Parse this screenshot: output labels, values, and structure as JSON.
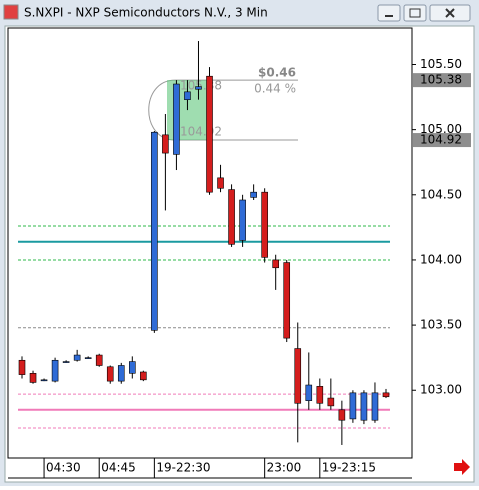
{
  "window": {
    "title": "S.NXPI - NXP Semiconductors N.V., 3 Min"
  },
  "chart_data": {
    "type": "candlestick",
    "up_color": "#2f6bd6",
    "down_color": "#d41d1d",
    "categories": [
      null,
      null,
      "04:30",
      null,
      null,
      null,
      null,
      "04:45",
      null,
      null,
      null,
      null,
      "19-22:30",
      null,
      null,
      null,
      null,
      null,
      null,
      null,
      null,
      null,
      "23:00",
      null,
      null,
      null,
      null,
      "19-23:15",
      null,
      null,
      null,
      null,
      null,
      null
    ],
    "open": [
      103.23,
      103.13,
      103.08,
      103.07,
      103.22,
      103.23,
      103.25,
      103.27,
      103.18,
      103.07,
      103.13,
      103.14,
      103.46,
      104.96,
      104.81,
      105.23,
      105.31,
      105.41,
      104.63,
      104.54,
      104.15,
      104.48,
      104.52,
      104.0,
      103.98,
      103.32,
      102.92,
      103.03,
      102.94,
      102.85,
      102.78,
      102.77,
      102.77,
      102.98
    ],
    "high": [
      103.26,
      103.15,
      103.09,
      103.25,
      103.23,
      103.31,
      103.26,
      103.28,
      103.19,
      103.21,
      103.26,
      103.15,
      104.99,
      105.12,
      105.38,
      105.38,
      105.68,
      105.48,
      104.73,
      104.58,
      104.5,
      104.58,
      104.55,
      104.04,
      104.0,
      103.52,
      103.29,
      103.09,
      103.09,
      102.92,
      103.0,
      103.0,
      103.06,
      103.01
    ],
    "low": [
      103.09,
      103.05,
      103.07,
      103.06,
      103.21,
      103.22,
      103.24,
      103.18,
      103.05,
      103.05,
      103.09,
      103.07,
      103.44,
      104.38,
      104.69,
      105.15,
      105.23,
      104.5,
      104.52,
      104.1,
      104.1,
      104.46,
      103.98,
      103.77,
      103.37,
      102.6,
      102.85,
      102.85,
      102.85,
      102.58,
      102.75,
      102.74,
      102.75,
      102.94
    ],
    "close": [
      103.12,
      103.06,
      103.08,
      103.23,
      103.22,
      103.27,
      103.25,
      103.19,
      103.07,
      103.19,
      103.22,
      103.08,
      104.98,
      104.82,
      105.35,
      105.29,
      105.33,
      104.52,
      104.55,
      104.12,
      104.46,
      104.52,
      104.02,
      103.94,
      103.4,
      102.9,
      103.04,
      102.9,
      102.88,
      102.77,
      102.98,
      102.98,
      102.98,
      102.95
    ],
    "ylim": [
      102.48,
      105.78
    ],
    "yticks": [
      {
        "value": 103,
        "label": "103.00"
      },
      {
        "value": 103.5,
        "label": "103.50"
      },
      {
        "value": 104,
        "label": "104.00"
      },
      {
        "value": 104.5,
        "label": "104.50"
      },
      {
        "value": 105,
        "label": "105.00"
      },
      {
        "value": 105.5,
        "label": "105.50"
      }
    ],
    "price_markers": [
      105.38,
      104.92
    ],
    "levels": [
      {
        "value": 104.26,
        "color": "#2db84a",
        "dashed": true
      },
      {
        "value": 104.14,
        "color": "#1a9aa0",
        "dashed": false
      },
      {
        "value": 104.0,
        "color": "#2db84a",
        "dashed": true
      },
      {
        "value": 103.48,
        "color": "#8a8a8a",
        "dashed": true
      },
      {
        "value": 102.97,
        "color": "#f07ab8",
        "dashed": true
      },
      {
        "value": 102.85,
        "color": "#f07ab8",
        "dashed": false
      },
      {
        "value": 102.71,
        "color": "#f07ab8",
        "dashed": true
      }
    ],
    "measure": {
      "top": 105.38,
      "bottom": 104.92,
      "change_label": "$0.46",
      "pct_label": "0.44 %"
    }
  }
}
